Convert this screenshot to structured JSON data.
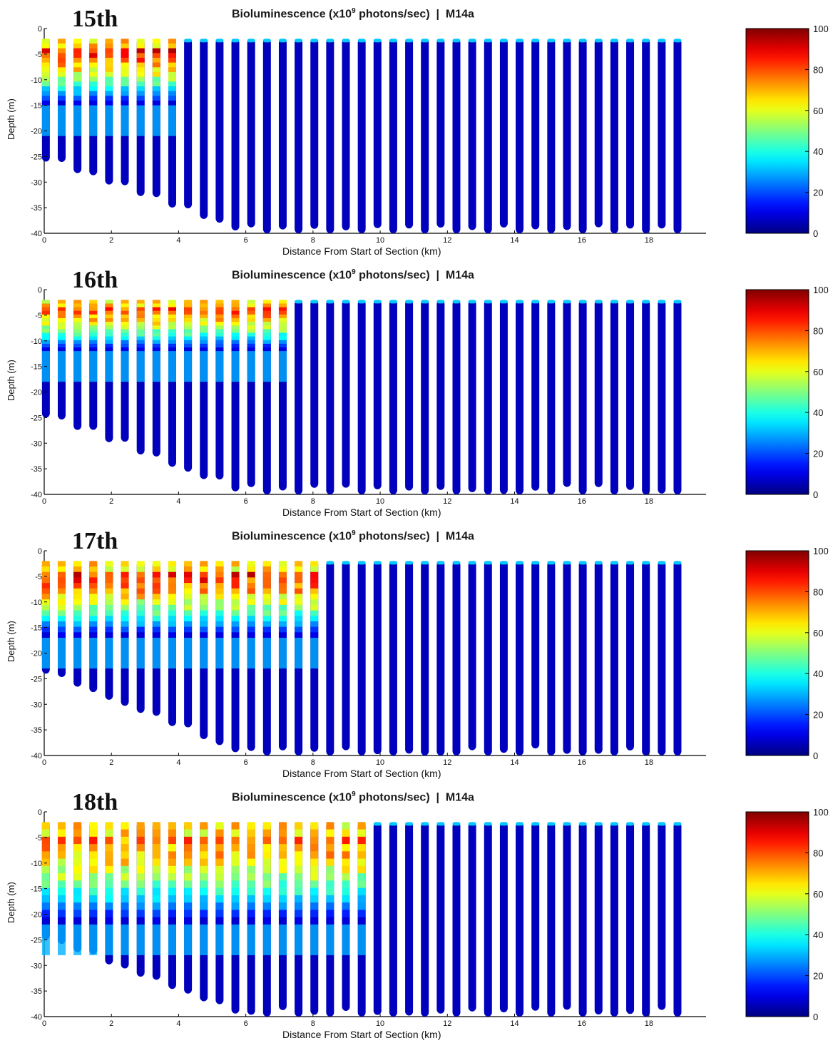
{
  "chart_data": [
    {
      "type": "scatter",
      "panel_label": "15th",
      "title_prefix": "Bioluminescence (x10",
      "title_exp": "9",
      "title_suffix": " photons/sec)  |  M14a",
      "xlabel": "Distance From Start of Section (km)",
      "ylabel": "Depth (m)",
      "xlim": [
        0,
        19.7
      ],
      "ylim": [
        -40,
        0
      ],
      "xticks": [
        0,
        2,
        4,
        6,
        8,
        10,
        12,
        14,
        16,
        18
      ],
      "yticks": [
        0,
        -5,
        -10,
        -15,
        -20,
        -25,
        -30,
        -35,
        -40
      ],
      "colorbar": {
        "min": 0,
        "max": 100,
        "ticks": [
          0,
          20,
          40,
          60,
          80,
          100
        ]
      },
      "profiles": {
        "count": 41,
        "spacing_km": 0.47,
        "bottom_depth_range": [
          -26,
          -40
        ]
      },
      "bright_layer": {
        "x_range_km": [
          0,
          4.2
        ],
        "depth_range": [
          -2,
          -15
        ],
        "peak_value": 100
      },
      "background_value": 5
    },
    {
      "type": "scatter",
      "panel_label": "16th",
      "title_prefix": "Bioluminescence (x10",
      "title_exp": "9",
      "title_suffix": " photons/sec)  |  M14a",
      "xlabel": "Distance From Start of Section (km)",
      "ylabel": "Depth (m)",
      "xlim": [
        0,
        19.7
      ],
      "ylim": [
        -40,
        0
      ],
      "xticks": [
        0,
        2,
        4,
        6,
        8,
        10,
        12,
        14,
        16,
        18
      ],
      "yticks": [
        0,
        -5,
        -10,
        -15,
        -20,
        -25,
        -30,
        -35,
        -40
      ],
      "colorbar": {
        "min": 0,
        "max": 100,
        "ticks": [
          0,
          20,
          40,
          60,
          80,
          100
        ]
      },
      "profiles": {
        "count": 41,
        "spacing_km": 0.47,
        "bottom_depth_range": [
          -25,
          -40
        ]
      },
      "bright_layer": {
        "x_range_km": [
          0,
          7.5
        ],
        "depth_range": [
          -2,
          -12
        ],
        "peak_value": 95
      },
      "background_value": 5
    },
    {
      "type": "scatter",
      "panel_label": "17th",
      "title_prefix": "Bioluminescence (x10",
      "title_exp": "9",
      "title_suffix": " photons/sec)  |  M14a",
      "xlabel": "Distance From Start of Section (km)",
      "ylabel": "Depth (m)",
      "xlim": [
        0,
        19.7
      ],
      "ylim": [
        -40,
        0
      ],
      "xticks": [
        0,
        2,
        4,
        6,
        8,
        10,
        12,
        14,
        16,
        18
      ],
      "yticks": [
        0,
        -5,
        -10,
        -15,
        -20,
        -25,
        -30,
        -35,
        -40
      ],
      "colorbar": {
        "min": 0,
        "max": 100,
        "ticks": [
          0,
          20,
          40,
          60,
          80,
          100
        ]
      },
      "profiles": {
        "count": 41,
        "spacing_km": 0.47,
        "bottom_depth_range": [
          -24,
          -40
        ]
      },
      "bright_layer": {
        "x_range_km": [
          0,
          8.5
        ],
        "depth_range": [
          -2,
          -17
        ],
        "peak_value": 100
      },
      "background_value": 5
    },
    {
      "type": "scatter",
      "panel_label": "18th",
      "title_prefix": "Bioluminescence (x10",
      "title_exp": "9",
      "title_suffix": " photons/sec)  |  M14a",
      "xlabel": "Distance From Start of Section (km)",
      "ylabel": "Depth (m)",
      "xlim": [
        0,
        19.7
      ],
      "ylim": [
        -40,
        0
      ],
      "xticks": [
        0,
        2,
        4,
        6,
        8,
        10,
        12,
        14,
        16,
        18
      ],
      "yticks": [
        0,
        -5,
        -10,
        -15,
        -20,
        -25,
        -30,
        -35,
        -40
      ],
      "colorbar": {
        "min": 0,
        "max": 100,
        "ticks": [
          0,
          20,
          40,
          60,
          80,
          100
        ]
      },
      "profiles": {
        "count": 41,
        "spacing_km": 0.47,
        "bottom_depth_range": [
          -25,
          -40
        ]
      },
      "bright_layer": {
        "x_range_km": [
          0,
          9.5
        ],
        "depth_range": [
          -2,
          -22
        ],
        "peak_value": 90
      },
      "background_value": 5
    }
  ],
  "colormap": "jet"
}
